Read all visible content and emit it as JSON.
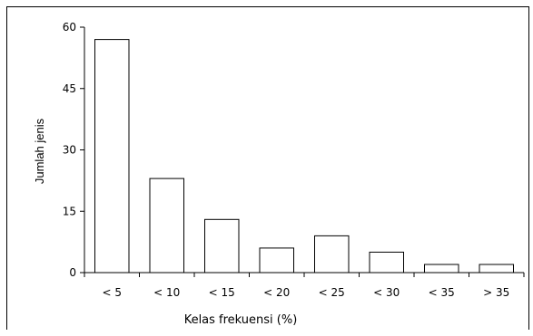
{
  "chart_data": {
    "type": "bar",
    "categories": [
      "< 5",
      "< 10",
      "< 15",
      "< 20",
      "< 25",
      "< 30",
      "< 35",
      "> 35"
    ],
    "values": [
      57,
      23,
      13,
      6,
      9,
      5,
      2,
      2
    ],
    "title": "",
    "xlabel": "Kelas frekuensi (%)",
    "ylabel": "Jumlah jenis",
    "ylim": [
      0,
      60
    ],
    "yticks": [
      0,
      15,
      30,
      45,
      60
    ],
    "grid": false,
    "legend": "none",
    "bar_fill": "#ffffff",
    "bar_stroke": "#000000"
  }
}
